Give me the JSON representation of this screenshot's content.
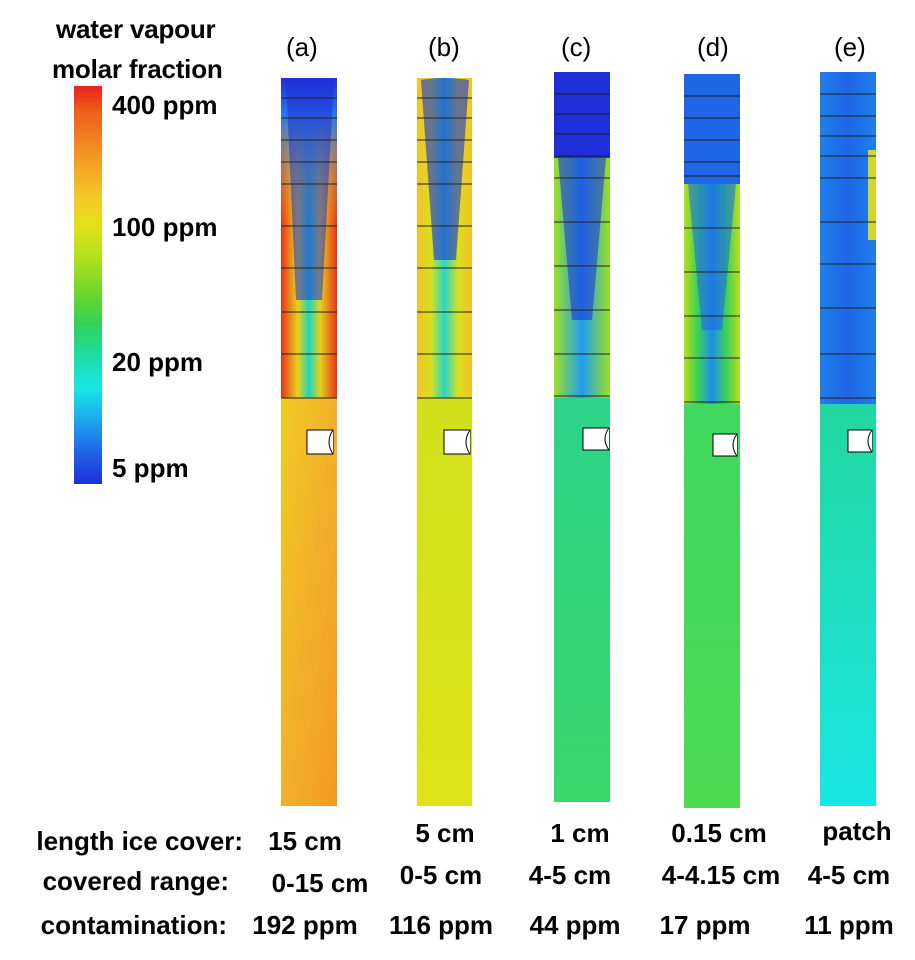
{
  "legend": {
    "title_line1": "water vapour",
    "title_line2": "molar fraction",
    "ticks": [
      "400 ppm",
      "100 ppm",
      "20 ppm",
      "5 ppm"
    ]
  },
  "panels": [
    {
      "label": "(a)",
      "length_ice_cover": "15 cm",
      "covered_range": "0-15 cm",
      "contamination": "192 ppm"
    },
    {
      "label": "(b)",
      "length_ice_cover": "5 cm",
      "covered_range": "0-5 cm",
      "contamination": "116 ppm"
    },
    {
      "label": "(c)",
      "length_ice_cover": "1 cm",
      "covered_range": "4-5 cm",
      "contamination": "44 ppm"
    },
    {
      "label": "(d)",
      "length_ice_cover": "0.15 cm",
      "covered_range": "4-4.15 cm",
      "contamination": "17 ppm"
    },
    {
      "label": "(e)",
      "length_ice_cover": "patch",
      "covered_range": "4-5 cm",
      "contamination": "11 ppm"
    }
  ],
  "rows": {
    "length_ice_cover": "length ice cover:",
    "covered_range": "covered range:",
    "contamination": "contamination:"
  }
}
